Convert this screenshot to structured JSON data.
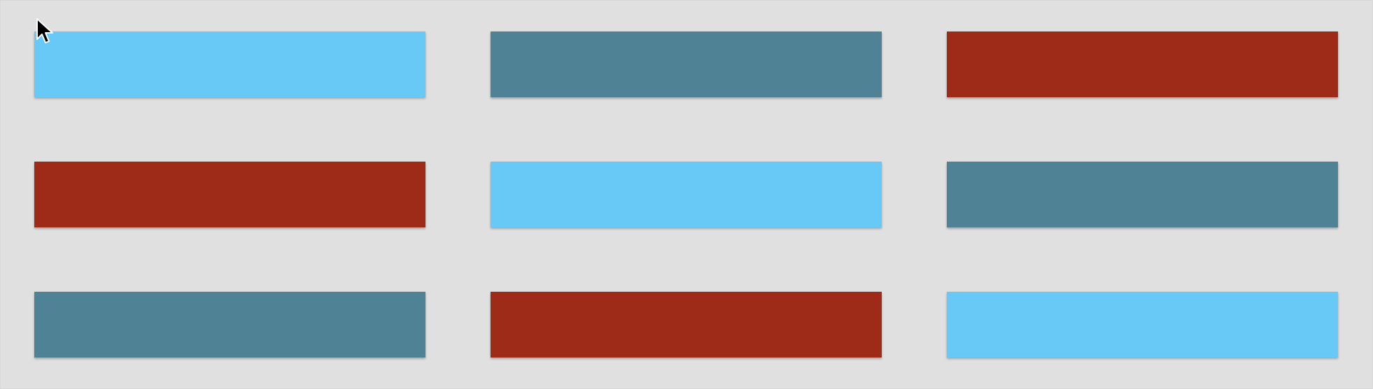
{
  "palette": {
    "sky": "#68c8f6",
    "teal": "#4f8295",
    "rust": "#9d2b17",
    "background": "#e0e0e0"
  },
  "tiles": [
    {
      "id": "r1c1",
      "color": "#68c8f6",
      "color_name": "sky"
    },
    {
      "id": "r1c2",
      "color": "#4f8295",
      "color_name": "teal"
    },
    {
      "id": "r1c3",
      "color": "#9d2b17",
      "color_name": "rust"
    },
    {
      "id": "r2c1",
      "color": "#9d2b17",
      "color_name": "rust"
    },
    {
      "id": "r2c2",
      "color": "#68c8f6",
      "color_name": "sky"
    },
    {
      "id": "r2c3",
      "color": "#4f8295",
      "color_name": "teal"
    },
    {
      "id": "r3c1",
      "color": "#4f8295",
      "color_name": "teal"
    },
    {
      "id": "r3c2",
      "color": "#9d2b17",
      "color_name": "rust"
    },
    {
      "id": "r3c3",
      "color": "#68c8f6",
      "color_name": "sky"
    }
  ],
  "cursor": {
    "icon": "mouse-pointer-icon"
  }
}
